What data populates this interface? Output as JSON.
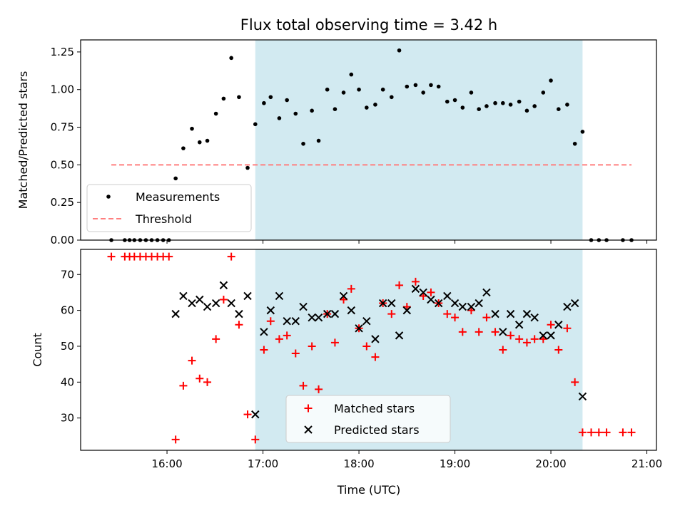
{
  "chart_data": {
    "title": "Flux total observing time = 3.42 h",
    "xlabel": "Time (UTC)",
    "x_axis": {
      "min_hours": 15.1,
      "max_hours": 21.1,
      "ticks": [
        {
          "hours": 16,
          "label": "16:00"
        },
        {
          "hours": 17,
          "label": "17:00"
        },
        {
          "hours": 18,
          "label": "18:00"
        },
        {
          "hours": 19,
          "label": "19:00"
        },
        {
          "hours": 20,
          "label": "20:00"
        },
        {
          "hours": 21,
          "label": "21:00"
        }
      ]
    },
    "observing_window_hours": [
      16.92,
      20.33
    ],
    "window_color": "#add8e6",
    "panels": [
      {
        "type": "scatter",
        "ylabel": "Matched/Predicted stars",
        "ylim": [
          0,
          1.33
        ],
        "yticks": [
          0.0,
          0.25,
          0.5,
          0.75,
          1.0,
          1.25
        ],
        "ytick_labels": [
          "0.00",
          "0.25",
          "0.50",
          "0.75",
          "1.00",
          "1.25"
        ],
        "legend": "lower-left",
        "series": [
          {
            "name": "Measurements",
            "marker": "dot",
            "color": "#000000",
            "x": [
              15.42,
              15.56,
              15.61,
              15.66,
              15.72,
              15.78,
              15.84,
              15.9,
              15.96,
              16.02,
              16.09,
              16.17,
              16.26,
              16.34,
              16.42,
              16.51,
              16.59,
              16.67,
              16.75,
              16.84,
              16.92,
              17.01,
              17.08,
              17.17,
              17.25,
              17.34,
              17.42,
              17.51,
              17.58,
              17.67,
              17.75,
              17.84,
              17.92,
              18.0,
              18.08,
              18.17,
              18.25,
              18.34,
              18.42,
              18.5,
              18.59,
              18.67,
              18.75,
              18.83,
              18.92,
              19.0,
              19.08,
              19.17,
              19.25,
              19.33,
              19.42,
              19.5,
              19.58,
              19.67,
              19.75,
              19.83,
              19.92,
              20.0,
              20.08,
              20.17,
              20.25,
              20.33,
              20.42,
              20.5,
              20.58,
              20.75,
              20.84
            ],
            "y": [
              0.0,
              0.0,
              0.0,
              0.0,
              0.0,
              0.0,
              0.0,
              0.0,
              0.0,
              0.0,
              0.41,
              0.61,
              0.74,
              0.65,
              0.66,
              0.84,
              0.94,
              1.21,
              0.95,
              0.48,
              0.77,
              0.91,
              0.95,
              0.81,
              0.93,
              0.84,
              0.64,
              0.86,
              0.66,
              1.0,
              0.87,
              0.98,
              1.1,
              1.0,
              0.88,
              0.9,
              1.0,
              0.95,
              1.26,
              1.02,
              1.03,
              0.98,
              1.03,
              1.02,
              0.92,
              0.93,
              0.88,
              0.98,
              0.87,
              0.89,
              0.91,
              0.91,
              0.9,
              0.92,
              0.86,
              0.89,
              0.98,
              1.06,
              0.87,
              0.9,
              0.64,
              0.72,
              0.0,
              0.0,
              0.0,
              0.0,
              0.0
            ]
          },
          {
            "name": "Threshold",
            "marker": "dashed-line",
            "color": "#ff7f7f",
            "x": [
              15.42,
              20.84
            ],
            "y": [
              0.5,
              0.5
            ]
          }
        ]
      },
      {
        "type": "scatter",
        "ylabel": "Count",
        "ylim": [
          21,
          77
        ],
        "yticks": [
          30,
          40,
          50,
          60,
          70
        ],
        "ytick_labels": [
          "30",
          "40",
          "50",
          "60",
          "70"
        ],
        "legend": "lower-center",
        "series": [
          {
            "name": "Matched stars",
            "marker": "plus",
            "color": "#ff0000",
            "x": [
              15.42,
              15.56,
              15.61,
              15.66,
              15.72,
              15.78,
              15.84,
              15.9,
              15.96,
              16.02,
              16.09,
              16.17,
              16.26,
              16.34,
              16.42,
              16.51,
              16.59,
              16.67,
              16.75,
              16.84,
              16.92,
              17.01,
              17.08,
              17.17,
              17.25,
              17.34,
              17.42,
              17.51,
              17.58,
              17.67,
              17.75,
              17.84,
              17.92,
              18.0,
              18.08,
              18.17,
              18.25,
              18.34,
              18.42,
              18.5,
              18.59,
              18.67,
              18.75,
              18.83,
              18.92,
              19.0,
              19.08,
              19.17,
              19.25,
              19.33,
              19.42,
              19.5,
              19.58,
              19.67,
              19.75,
              19.83,
              19.92,
              20.0,
              20.08,
              20.17,
              20.25,
              20.33,
              20.42,
              20.5,
              20.58,
              20.75,
              20.84
            ],
            "y": [
              75,
              75,
              75,
              75,
              75,
              75,
              75,
              75,
              75,
              75,
              24,
              39,
              46,
              41,
              40,
              52,
              63,
              75,
              56,
              31,
              24,
              49,
              57,
              52,
              53,
              48,
              39,
              50,
              38,
              59,
              51,
              63,
              66,
              55,
              50,
              47,
              62,
              59,
              67,
              61,
              68,
              64,
              65,
              62,
              59,
              58,
              54,
              60,
              54,
              58,
              54,
              49,
              53,
              52,
              51,
              52,
              52,
              56,
              49,
              55,
              40,
              26,
              26,
              26,
              26,
              26,
              26
            ]
          },
          {
            "name": "Predicted stars",
            "marker": "x",
            "color": "#000000",
            "x": [
              16.09,
              16.17,
              16.26,
              16.34,
              16.42,
              16.51,
              16.59,
              16.67,
              16.75,
              16.84,
              16.92,
              17.01,
              17.08,
              17.17,
              17.25,
              17.34,
              17.42,
              17.51,
              17.58,
              17.67,
              17.75,
              17.84,
              17.92,
              18.0,
              18.08,
              18.17,
              18.25,
              18.34,
              18.42,
              18.5,
              18.59,
              18.67,
              18.75,
              18.83,
              18.92,
              19.0,
              19.08,
              19.17,
              19.25,
              19.33,
              19.42,
              19.5,
              19.58,
              19.67,
              19.75,
              19.83,
              19.92,
              20.0,
              20.08,
              20.17,
              20.25,
              20.33
            ],
            "y": [
              59,
              64,
              62,
              63,
              61,
              62,
              67,
              62,
              59,
              64,
              31,
              54,
              60,
              64,
              57,
              57,
              61,
              58,
              58,
              59,
              59,
              64,
              60,
              55,
              57,
              52,
              62,
              62,
              53,
              60,
              66,
              65,
              63,
              62,
              64,
              62,
              61,
              61,
              62,
              65,
              59,
              54,
              59,
              56,
              59,
              58,
              53,
              53,
              56,
              61,
              62,
              36
            ]
          }
        ]
      }
    ]
  }
}
